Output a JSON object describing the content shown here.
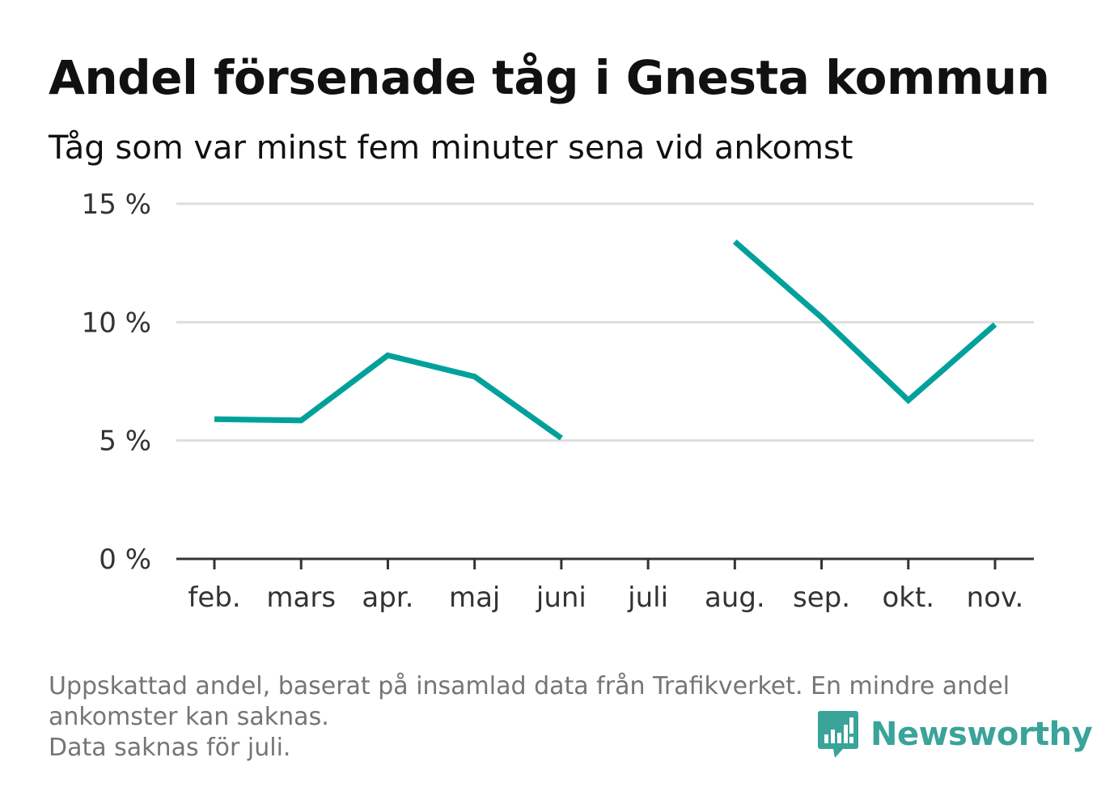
{
  "header": {
    "title": "Andel försenade tåg i Gnesta kommun",
    "subtitle": "Tåg som var minst fem minuter sena vid ankomst"
  },
  "chart_data": {
    "type": "line",
    "title": "Andel försenade tåg i Gnesta kommun",
    "subtitle": "Tåg som var minst fem minuter sena vid ankomst",
    "categories": [
      "feb.",
      "mars",
      "apr.",
      "maj",
      "juni",
      "juli",
      "aug.",
      "sep.",
      "okt.",
      "nov."
    ],
    "series": [
      {
        "values": [
          5.9,
          5.85,
          8.6,
          7.7,
          5.1,
          null,
          13.4,
          10.2,
          6.7,
          9.9
        ],
        "color": "#00a19a"
      }
    ],
    "y_ticks": [
      {
        "value": 0,
        "label": "0 %"
      },
      {
        "value": 5,
        "label": "5 %"
      },
      {
        "value": 10,
        "label": "10 %"
      },
      {
        "value": 15,
        "label": "15 %"
      }
    ],
    "ylim": [
      0,
      15
    ],
    "grid": true,
    "colors": {
      "line": "#00a19a",
      "grid": "#dddddd",
      "axis": "#333333"
    }
  },
  "footer": {
    "notes": [
      "Uppskattad andel, baserat på insamlad data från Trafikverket. En mindre andel",
      "ankomster kan saknas.",
      "Data saknas för juli."
    ],
    "brand": "Newsworthy",
    "brand_color": "#3aa39a",
    "brand_icon": "bar-chart-speech-bubble-icon"
  }
}
